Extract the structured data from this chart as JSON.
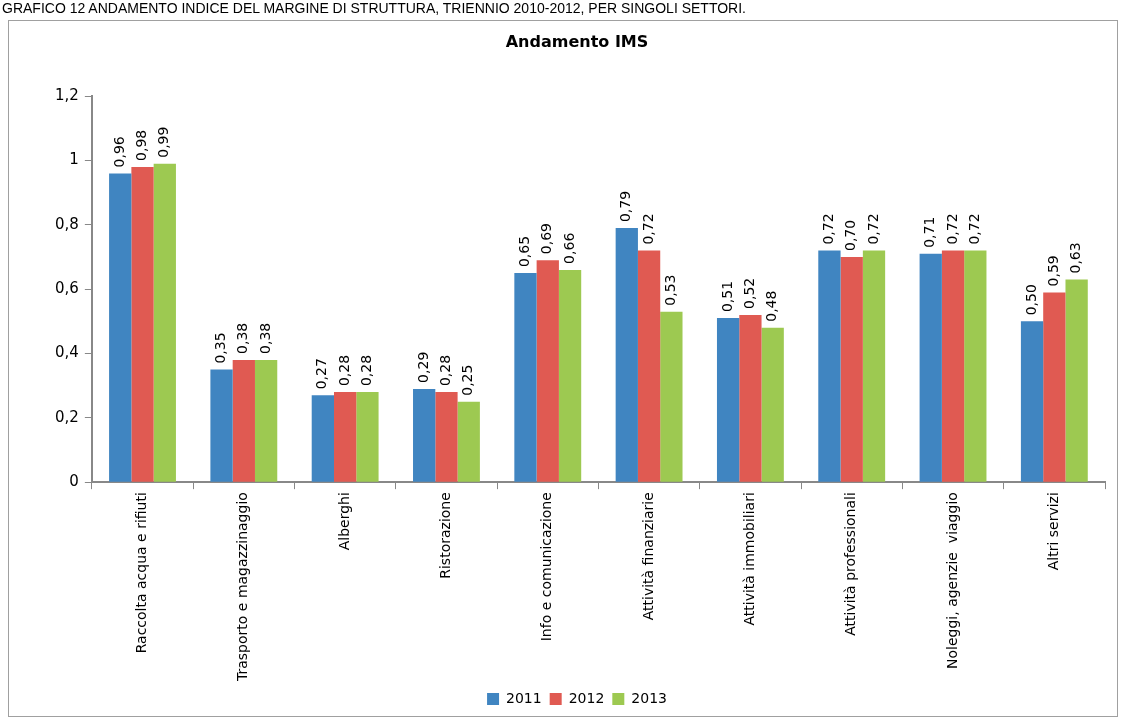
{
  "chart_data": {
    "type": "bar",
    "title": "Andamento IMS",
    "annotations": [
      "GRAFICO 12 ANDAMENTO INDICE DEL MARGINE DI STRUTTURA, TRIENNIO 2010-2012, PER SINGOLI SETTORI."
    ],
    "categories": [
      "Raccolta acqua e rifiuti",
      "Trasporto e magazzinaggio",
      "Alberghi",
      "Ristorazione",
      "Info e comunicazione",
      "Attività finanziarie",
      "Attività immobiliari",
      "Attività professionali",
      "Noleggi, agenzie  viaggio",
      "Altri servizi"
    ],
    "series": [
      {
        "name": "2011",
        "color": "#4085c1",
        "values": [
          0.96,
          0.35,
          0.27,
          0.29,
          0.65,
          0.79,
          0.51,
          0.72,
          0.71,
          0.5
        ],
        "value_labels": [
          "0,96",
          "0,35",
          "0,27",
          "0,29",
          "0,65",
          "0,79",
          "0,51",
          "0,72",
          "0,71",
          "0,50"
        ]
      },
      {
        "name": "2012",
        "color": "#e05a52",
        "values": [
          0.98,
          0.38,
          0.28,
          0.28,
          0.69,
          0.72,
          0.52,
          0.7,
          0.72,
          0.59
        ],
        "value_labels": [
          "0,98",
          "0,38",
          "0,28",
          "0,28",
          "0,69",
          "0,72",
          "0,52",
          "0,70",
          "0,72",
          "0,59"
        ]
      },
      {
        "name": "2013",
        "color": "#9dc951",
        "values": [
          0.99,
          0.38,
          0.28,
          0.25,
          0.66,
          0.53,
          0.48,
          0.72,
          0.72,
          0.63
        ],
        "value_labels": [
          "0,99",
          "0,38",
          "0,28",
          "0,25",
          "0,66",
          "0,53",
          "0,48",
          "0,72",
          "0,72",
          "0,63"
        ]
      }
    ],
    "ylim": [
      0,
      1.2
    ],
    "yticks": [
      0,
      {
        "value": 0.2,
        "label": "0,2"
      },
      {
        "value": 0.4,
        "label": "0,4"
      },
      {
        "value": 0.6,
        "label": "0,6"
      },
      {
        "value": 0.8,
        "label": "0,8"
      },
      1,
      {
        "value": 1.2,
        "label": "1,2"
      }
    ],
    "legend": "bottom"
  }
}
